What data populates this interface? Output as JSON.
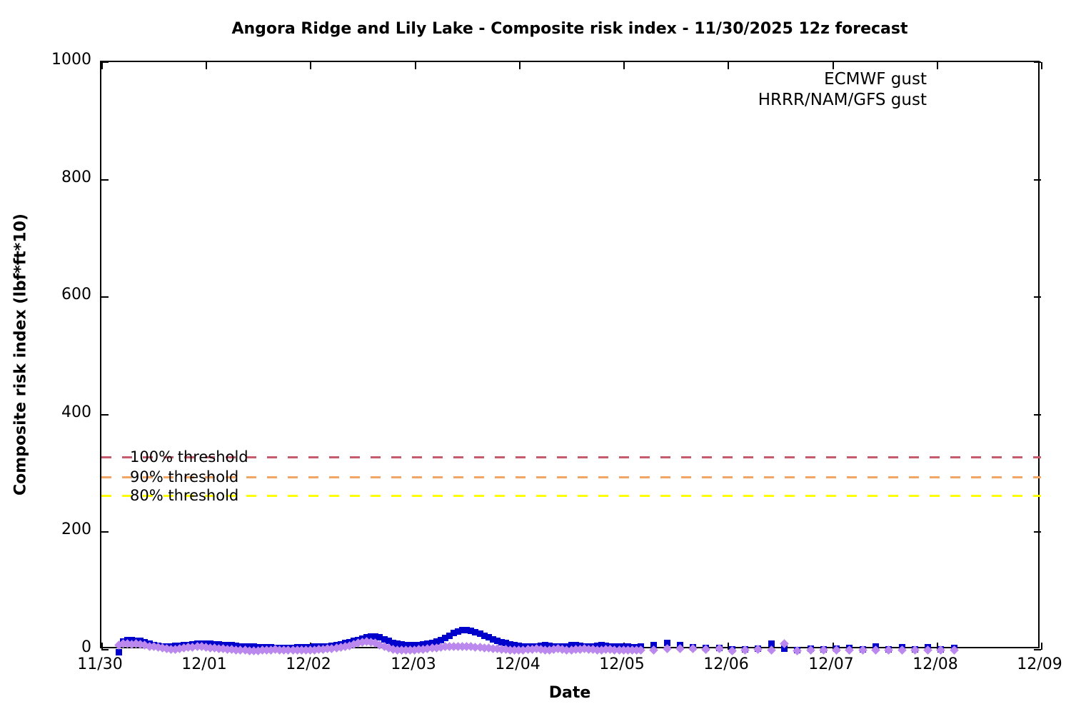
{
  "title": "Angora Ridge and Lily Lake - Composite risk index - 11/30/2025 12z forecast",
  "axes": {
    "x_label": "Date",
    "y_label": "Composite risk index (lbf*ft*10)",
    "x_tick_labels": [
      "11/30",
      "12/01",
      "12/02",
      "12/03",
      "12/04",
      "12/05",
      "12/06",
      "12/07",
      "12/08",
      "12/09"
    ],
    "y_tick_labels": [
      "0",
      "200",
      "400",
      "600",
      "800",
      "1000"
    ],
    "y_tick_values": [
      0,
      200,
      400,
      600,
      800,
      1000
    ],
    "ylim": [
      0,
      1000
    ],
    "x_span_days": 9
  },
  "legend": {
    "entries": [
      {
        "label": "ECMWF gust",
        "marker": "square",
        "color": "#0000cc"
      },
      {
        "label": "HRRR/NAM/GFS gust",
        "marker": "diamond",
        "color": "#bb88ee"
      }
    ]
  },
  "thresholds": [
    {
      "label": "100% threshold",
      "value": 328,
      "color": "#c65b6e"
    },
    {
      "label": "90% threshold",
      "value": 294,
      "color": "#f2a666"
    },
    {
      "label": "80% threshold",
      "value": 262,
      "color": "#ffff00"
    }
  ],
  "chart_data": {
    "type": "scatter",
    "title": "Angora Ridge and Lily Lake - Composite risk index - 11/30/2025 12z forecast",
    "xlabel": "Date",
    "ylabel": "Composite risk index (lbf*ft*10)",
    "x_unit": "hours after 11/30 00:00 local",
    "x_categories": [
      "11/30",
      "12/01",
      "12/02",
      "12/03",
      "12/04",
      "12/05",
      "12/06",
      "12/07",
      "12/08",
      "12/09"
    ],
    "ylim": [
      0,
      1000
    ],
    "grid": false,
    "legend_position": "top-right-inside",
    "series": [
      {
        "name": "ECMWF gust",
        "marker": "square",
        "color": "#0000cc",
        "points": [
          [
            4,
            -4
          ],
          [
            5,
            14
          ],
          [
            6,
            16
          ],
          [
            7,
            16
          ],
          [
            8,
            15
          ],
          [
            9,
            15
          ],
          [
            10,
            13
          ],
          [
            11,
            10
          ],
          [
            12,
            8
          ],
          [
            13,
            7
          ],
          [
            14,
            6
          ],
          [
            15,
            6
          ],
          [
            16,
            6
          ],
          [
            17,
            7
          ],
          [
            18,
            7
          ],
          [
            19,
            8
          ],
          [
            20,
            8
          ],
          [
            21,
            9
          ],
          [
            22,
            10
          ],
          [
            23,
            10
          ],
          [
            24,
            10
          ],
          [
            25,
            10
          ],
          [
            26,
            9
          ],
          [
            27,
            9
          ],
          [
            28,
            8
          ],
          [
            29,
            8
          ],
          [
            30,
            8
          ],
          [
            31,
            7
          ],
          [
            32,
            6
          ],
          [
            33,
            6
          ],
          [
            34,
            5
          ],
          [
            35,
            5
          ],
          [
            36,
            4
          ],
          [
            37,
            4
          ],
          [
            38,
            4
          ],
          [
            39,
            4
          ],
          [
            40,
            3
          ],
          [
            41,
            3
          ],
          [
            42,
            3
          ],
          [
            43,
            3
          ],
          [
            44,
            3
          ],
          [
            45,
            4
          ],
          [
            46,
            4
          ],
          [
            47,
            4
          ],
          [
            48,
            4
          ],
          [
            49,
            5
          ],
          [
            50,
            5
          ],
          [
            51,
            5
          ],
          [
            52,
            6
          ],
          [
            53,
            7
          ],
          [
            54,
            8
          ],
          [
            55,
            9
          ],
          [
            56,
            11
          ],
          [
            57,
            13
          ],
          [
            58,
            15
          ],
          [
            59,
            17
          ],
          [
            60,
            19
          ],
          [
            61,
            21
          ],
          [
            62,
            22
          ],
          [
            63,
            22
          ],
          [
            64,
            21
          ],
          [
            65,
            18
          ],
          [
            66,
            15
          ],
          [
            67,
            12
          ],
          [
            68,
            10
          ],
          [
            69,
            9
          ],
          [
            70,
            8
          ],
          [
            71,
            8
          ],
          [
            72,
            8
          ],
          [
            73,
            8
          ],
          [
            74,
            9
          ],
          [
            75,
            10
          ],
          [
            76,
            12
          ],
          [
            77,
            14
          ],
          [
            78,
            17
          ],
          [
            79,
            20
          ],
          [
            80,
            24
          ],
          [
            81,
            28
          ],
          [
            82,
            31
          ],
          [
            83,
            33
          ],
          [
            84,
            33
          ],
          [
            85,
            32
          ],
          [
            86,
            30
          ],
          [
            87,
            27
          ],
          [
            88,
            24
          ],
          [
            89,
            21
          ],
          [
            90,
            18
          ],
          [
            91,
            15
          ],
          [
            92,
            13
          ],
          [
            93,
            11
          ],
          [
            94,
            9
          ],
          [
            95,
            8
          ],
          [
            96,
            7
          ],
          [
            97,
            6
          ],
          [
            98,
            5
          ],
          [
            99,
            5
          ],
          [
            100,
            6
          ],
          [
            101,
            7
          ],
          [
            102,
            8
          ],
          [
            103,
            7
          ],
          [
            104,
            6
          ],
          [
            105,
            5
          ],
          [
            106,
            5
          ],
          [
            107,
            6
          ],
          [
            108,
            8
          ],
          [
            109,
            8
          ],
          [
            110,
            7
          ],
          [
            111,
            6
          ],
          [
            112,
            5
          ],
          [
            113,
            6
          ],
          [
            114,
            7
          ],
          [
            115,
            8
          ],
          [
            116,
            7
          ],
          [
            117,
            6
          ],
          [
            118,
            5
          ],
          [
            119,
            5
          ],
          [
            120,
            5
          ],
          [
            121,
            5
          ],
          [
            122,
            4
          ],
          [
            123,
            4
          ],
          [
            124,
            5
          ],
          [
            127,
            8
          ],
          [
            130,
            12
          ],
          [
            133,
            8
          ],
          [
            136,
            4
          ],
          [
            139,
            3
          ],
          [
            142,
            3
          ],
          [
            145,
            1
          ],
          [
            148,
            1
          ],
          [
            151,
            2
          ],
          [
            154,
            10
          ],
          [
            157,
            2
          ],
          [
            160,
            0
          ],
          [
            163,
            2
          ],
          [
            166,
            1
          ],
          [
            169,
            2
          ],
          [
            172,
            3
          ],
          [
            175,
            1
          ],
          [
            178,
            5
          ],
          [
            181,
            1
          ],
          [
            184,
            4
          ],
          [
            187,
            1
          ],
          [
            190,
            4
          ],
          [
            193,
            1
          ],
          [
            196,
            3
          ]
        ]
      },
      {
        "name": "HRRR/NAM/GFS gust",
        "marker": "diamond",
        "color": "#bb88ee",
        "points": [
          [
            4,
            8
          ],
          [
            5,
            10
          ],
          [
            6,
            10
          ],
          [
            7,
            9
          ],
          [
            8,
            10
          ],
          [
            9,
            9
          ],
          [
            10,
            8
          ],
          [
            11,
            6
          ],
          [
            12,
            5
          ],
          [
            13,
            4
          ],
          [
            14,
            3
          ],
          [
            15,
            2
          ],
          [
            16,
            1
          ],
          [
            17,
            1
          ],
          [
            18,
            2
          ],
          [
            19,
            3
          ],
          [
            20,
            4
          ],
          [
            21,
            4
          ],
          [
            22,
            5
          ],
          [
            23,
            5
          ],
          [
            24,
            4
          ],
          [
            25,
            3
          ],
          [
            26,
            3
          ],
          [
            27,
            2
          ],
          [
            28,
            2
          ],
          [
            29,
            1
          ],
          [
            30,
            1
          ],
          [
            31,
            0
          ],
          [
            32,
            0
          ],
          [
            33,
            -1
          ],
          [
            34,
            -2
          ],
          [
            35,
            -2
          ],
          [
            36,
            -2
          ],
          [
            37,
            -1
          ],
          [
            38,
            0
          ],
          [
            39,
            0
          ],
          [
            40,
            1
          ],
          [
            41,
            0
          ],
          [
            42,
            0
          ],
          [
            43,
            -1
          ],
          [
            44,
            -1
          ],
          [
            45,
            0
          ],
          [
            46,
            0
          ],
          [
            47,
            0
          ],
          [
            48,
            0
          ],
          [
            49,
            0
          ],
          [
            50,
            1
          ],
          [
            51,
            1
          ],
          [
            52,
            2
          ],
          [
            53,
            2
          ],
          [
            54,
            3
          ],
          [
            55,
            4
          ],
          [
            56,
            5
          ],
          [
            57,
            7
          ],
          [
            58,
            9
          ],
          [
            59,
            11
          ],
          [
            60,
            13
          ],
          [
            61,
            14
          ],
          [
            62,
            13
          ],
          [
            63,
            11
          ],
          [
            64,
            8
          ],
          [
            65,
            5
          ],
          [
            66,
            3
          ],
          [
            67,
            1
          ],
          [
            68,
            0
          ],
          [
            69,
            0
          ],
          [
            70,
            -1
          ],
          [
            71,
            0
          ],
          [
            72,
            0
          ],
          [
            73,
            1
          ],
          [
            74,
            1
          ],
          [
            75,
            2
          ],
          [
            76,
            3
          ],
          [
            77,
            3
          ],
          [
            78,
            4
          ],
          [
            79,
            5
          ],
          [
            80,
            5
          ],
          [
            81,
            6
          ],
          [
            82,
            6
          ],
          [
            83,
            6
          ],
          [
            84,
            5
          ],
          [
            85,
            5
          ],
          [
            86,
            4
          ],
          [
            87,
            4
          ],
          [
            88,
            3
          ],
          [
            89,
            3
          ],
          [
            90,
            2
          ],
          [
            91,
            2
          ],
          [
            92,
            1
          ],
          [
            93,
            1
          ],
          [
            94,
            0
          ],
          [
            95,
            0
          ],
          [
            96,
            0
          ],
          [
            97,
            0
          ],
          [
            98,
            1
          ],
          [
            99,
            1
          ],
          [
            100,
            2
          ],
          [
            101,
            1
          ],
          [
            102,
            0
          ],
          [
            103,
            0
          ],
          [
            104,
            1
          ],
          [
            105,
            2
          ],
          [
            106,
            1
          ],
          [
            107,
            0
          ],
          [
            108,
            0
          ],
          [
            109,
            1
          ],
          [
            110,
            1
          ],
          [
            111,
            2
          ],
          [
            112,
            1
          ],
          [
            113,
            1
          ],
          [
            114,
            0
          ],
          [
            115,
            0
          ],
          [
            116,
            1
          ],
          [
            117,
            1
          ],
          [
            118,
            0
          ],
          [
            119,
            0
          ],
          [
            120,
            0
          ],
          [
            121,
            0
          ],
          [
            122,
            0
          ],
          [
            123,
            0
          ],
          [
            124,
            0
          ],
          [
            127,
            0
          ],
          [
            130,
            2
          ],
          [
            133,
            2
          ],
          [
            136,
            2
          ],
          [
            139,
            1
          ],
          [
            142,
            2
          ],
          [
            145,
            -2
          ],
          [
            148,
            0
          ],
          [
            151,
            1
          ],
          [
            154,
            0
          ],
          [
            157,
            10
          ],
          [
            160,
            -2
          ],
          [
            163,
            0
          ],
          [
            166,
            0
          ],
          [
            169,
            0
          ],
          [
            172,
            0
          ],
          [
            175,
            0
          ],
          [
            178,
            0
          ],
          [
            181,
            -1
          ],
          [
            184,
            0
          ],
          [
            187,
            0
          ],
          [
            190,
            -1
          ],
          [
            193,
            0
          ],
          [
            196,
            -1
          ]
        ]
      }
    ],
    "threshold_lines": [
      {
        "label": "100% threshold",
        "value": 328,
        "color": "#c65b6e",
        "style": "dashed"
      },
      {
        "label": "90% threshold",
        "value": 294,
        "color": "#f2a666",
        "style": "dashed"
      },
      {
        "label": "80% threshold",
        "value": 262,
        "color": "#ffff00",
        "style": "dashed"
      }
    ]
  }
}
